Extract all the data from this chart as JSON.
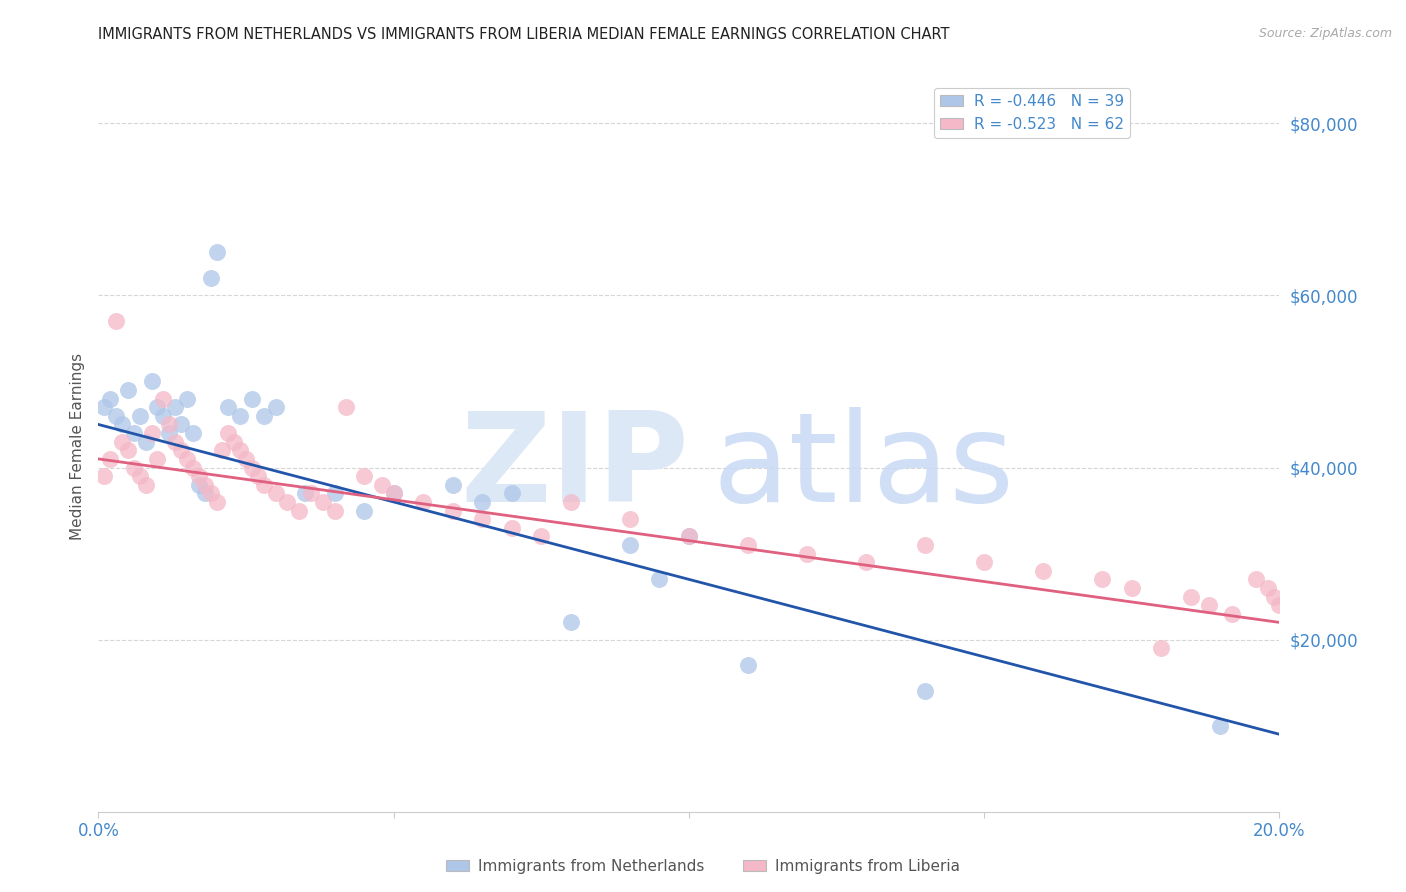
{
  "title": "IMMIGRANTS FROM NETHERLANDS VS IMMIGRANTS FROM LIBERIA MEDIAN FEMALE EARNINGS CORRELATION CHART",
  "source": "Source: ZipAtlas.com",
  "xlabel_legend1": "Immigrants from Netherlands",
  "xlabel_legend2": "Immigrants from Liberia",
  "ylabel": "Median Female Earnings",
  "legend_r1": "R = -0.446",
  "legend_n1": "N = 39",
  "legend_r2": "R = -0.523",
  "legend_n2": "N = 62",
  "xlim": [
    0.0,
    0.2
  ],
  "ylim": [
    0,
    85000
  ],
  "yticks": [
    20000,
    40000,
    60000,
    80000
  ],
  "ytick_labels": [
    "$20,000",
    "$40,000",
    "$60,000",
    "$80,000"
  ],
  "xticks": [
    0.0,
    0.05,
    0.1,
    0.15,
    0.2
  ],
  "xtick_labels": [
    "0.0%",
    "",
    "",
    "",
    "20.0%"
  ],
  "color_blue": "#aec6e8",
  "color_pink": "#f4b8c8",
  "line_color_blue": "#2255aa",
  "line_color_pink": "#e06080",
  "text_color": "#4488cc",
  "watermark_zip_color": "#e0e8f4",
  "watermark_atlas_color": "#c8daf0",
  "nl_line_y0": 45000,
  "nl_line_y1": 9000,
  "lib_line_y0": 41000,
  "lib_line_y1": 22000,
  "nl_x": [
    0.001,
    0.002,
    0.003,
    0.004,
    0.005,
    0.006,
    0.007,
    0.008,
    0.009,
    0.01,
    0.011,
    0.012,
    0.013,
    0.014,
    0.015,
    0.016,
    0.017,
    0.018,
    0.019,
    0.02,
    0.022,
    0.024,
    0.026,
    0.028,
    0.03,
    0.035,
    0.04,
    0.045,
    0.05,
    0.06,
    0.065,
    0.07,
    0.08,
    0.09,
    0.095,
    0.1,
    0.11,
    0.14,
    0.19
  ],
  "nl_y": [
    47000,
    48000,
    46000,
    45000,
    49000,
    44000,
    46000,
    43000,
    50000,
    47000,
    46000,
    44000,
    47000,
    45000,
    48000,
    44000,
    38000,
    37000,
    62000,
    65000,
    47000,
    46000,
    48000,
    46000,
    47000,
    37000,
    37000,
    35000,
    37000,
    38000,
    36000,
    37000,
    22000,
    31000,
    27000,
    32000,
    17000,
    14000,
    10000
  ],
  "lib_x": [
    0.001,
    0.002,
    0.003,
    0.004,
    0.005,
    0.006,
    0.007,
    0.008,
    0.009,
    0.01,
    0.011,
    0.012,
    0.013,
    0.014,
    0.015,
    0.016,
    0.017,
    0.018,
    0.019,
    0.02,
    0.021,
    0.022,
    0.023,
    0.024,
    0.025,
    0.026,
    0.027,
    0.028,
    0.03,
    0.032,
    0.034,
    0.036,
    0.038,
    0.04,
    0.042,
    0.045,
    0.048,
    0.05,
    0.055,
    0.06,
    0.065,
    0.07,
    0.075,
    0.08,
    0.09,
    0.1,
    0.11,
    0.12,
    0.13,
    0.14,
    0.15,
    0.16,
    0.17,
    0.175,
    0.18,
    0.185,
    0.188,
    0.192,
    0.196,
    0.198,
    0.199,
    0.2
  ],
  "lib_y": [
    39000,
    41000,
    57000,
    43000,
    42000,
    40000,
    39000,
    38000,
    44000,
    41000,
    48000,
    45000,
    43000,
    42000,
    41000,
    40000,
    39000,
    38000,
    37000,
    36000,
    42000,
    44000,
    43000,
    42000,
    41000,
    40000,
    39000,
    38000,
    37000,
    36000,
    35000,
    37000,
    36000,
    35000,
    47000,
    39000,
    38000,
    37000,
    36000,
    35000,
    34000,
    33000,
    32000,
    36000,
    34000,
    32000,
    31000,
    30000,
    29000,
    31000,
    29000,
    28000,
    27000,
    26000,
    19000,
    25000,
    24000,
    23000,
    27000,
    26000,
    25000,
    24000
  ]
}
